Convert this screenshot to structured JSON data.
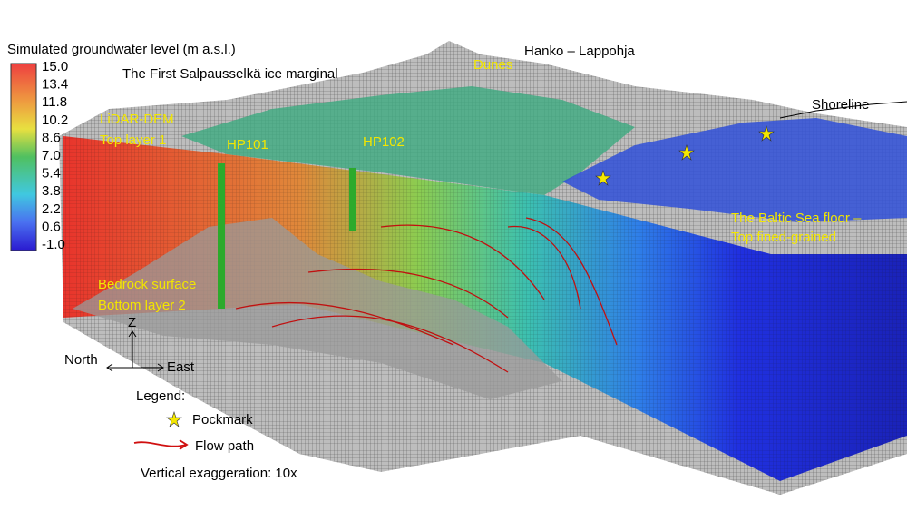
{
  "colorbar": {
    "title": "Simulated groundwater level (m a.s.l.)",
    "ticks": [
      "15.0",
      "13.4",
      "11.8",
      "10.2",
      "8.6",
      "7.0",
      "5.4",
      "3.8",
      "2.2",
      "0.6",
      "-1.0"
    ]
  },
  "annotations": {
    "ice_marginal": "The First Salpausselkä ice marginal",
    "area": "Hanko – Lappohja",
    "dunes": "Dunes",
    "shoreline": "Shoreline",
    "lidar": "LiDAR-DEM",
    "top_layer": "Top layer 1",
    "hp101": "HP101",
    "hp102": "HP102",
    "sea_floor": "The Baltic Sea floor –",
    "sea_floor_2": "Top fined-grained",
    "bedrock": "Bedrock surface",
    "bottom_layer": "Bottom layer 2"
  },
  "axes": {
    "z": "Z",
    "north": "North",
    "east": "East"
  },
  "legend": {
    "title": "Legend:",
    "items": [
      "Pockmark",
      "Flow path"
    ]
  },
  "note": "Vertical exaggeration: 10x"
}
